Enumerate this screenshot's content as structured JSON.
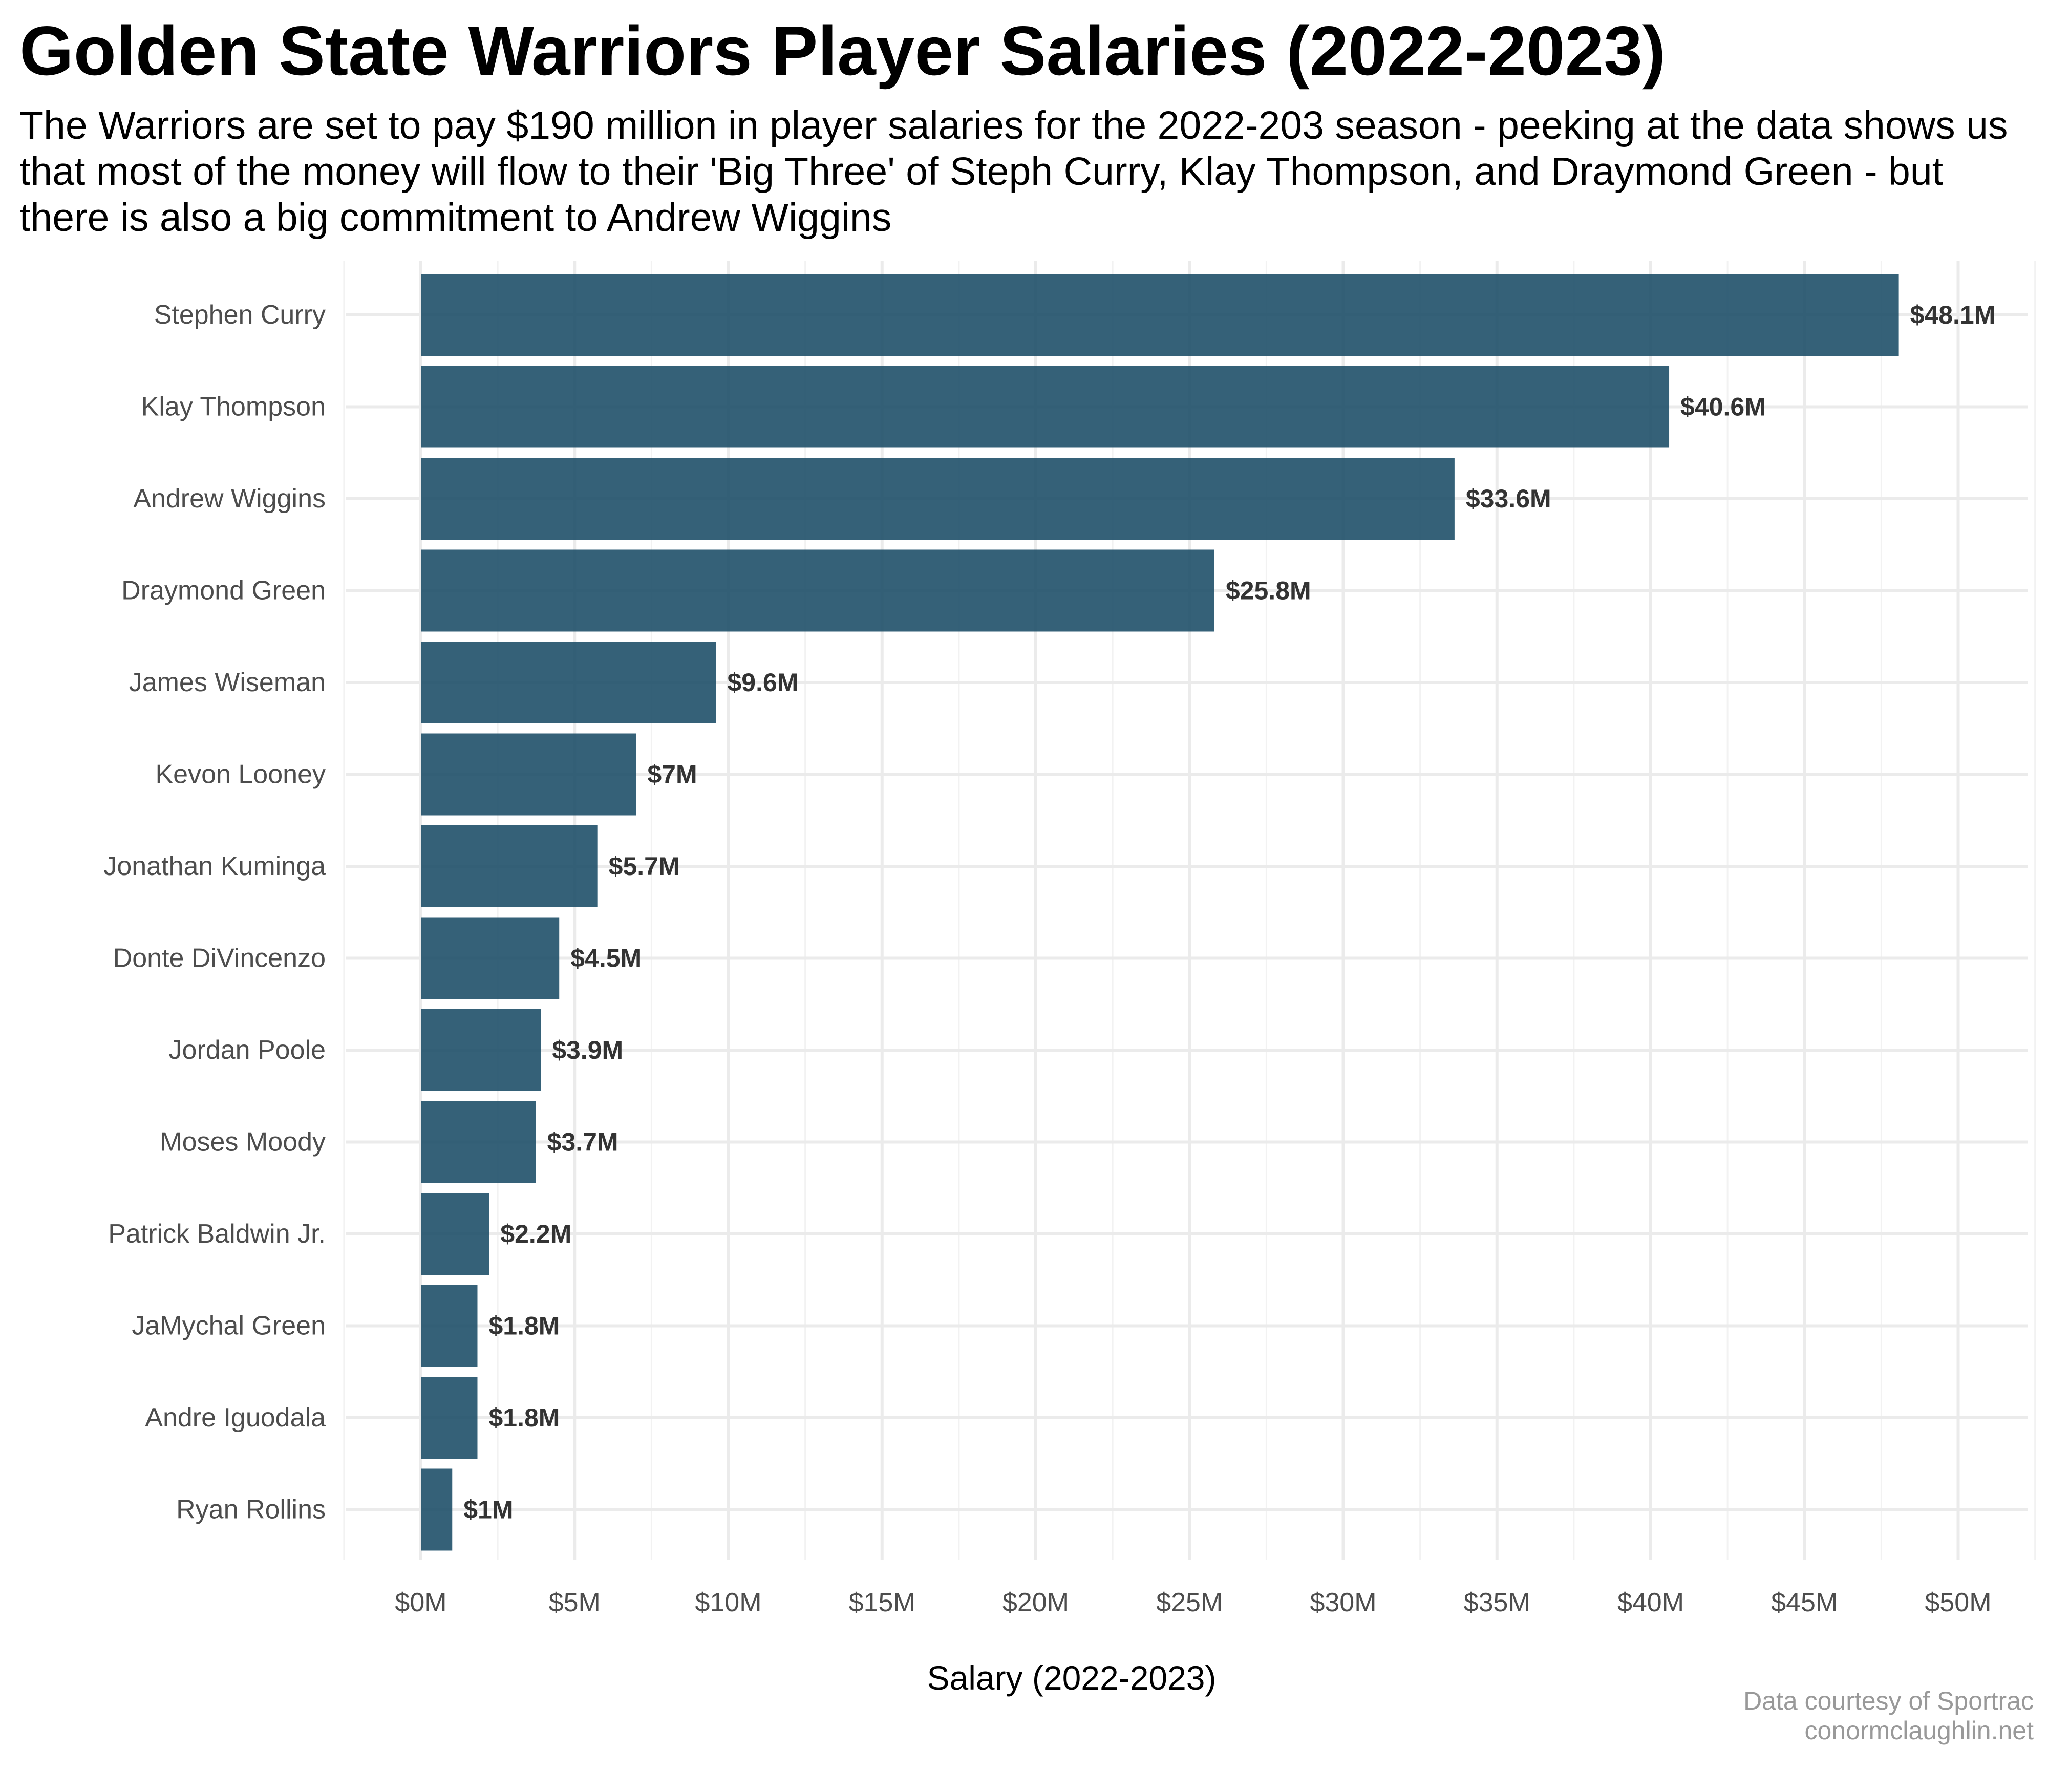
{
  "chart_data": {
    "type": "bar",
    "orientation": "horizontal",
    "title": "Golden State Warriors Player Salaries (2022-2023)",
    "subtitle": "The Warriors are set to pay $190 million in player salaries for the 2022-203 season - peeking at the data shows us that most of the money will flow to their 'Big Three' of Steph Curry, Klay Thompson, and Draymond Green - but there is also a big commitment to Andrew Wiggins",
    "xlabel": "Salary (2022-2023)",
    "ylabel": "",
    "xlim": [
      -2.5,
      52.5
    ],
    "x_ticks": [
      0,
      5,
      10,
      15,
      20,
      25,
      30,
      35,
      40,
      45,
      50
    ],
    "x_tick_labels": [
      "$0M",
      "$5M",
      "$10M",
      "$15M",
      "$20M",
      "$25M",
      "$30M",
      "$35M",
      "$40M",
      "$45M",
      "$50M"
    ],
    "categories": [
      "Stephen Curry",
      "Klay Thompson",
      "Andrew Wiggins",
      "Draymond Green",
      "James Wiseman",
      "Kevon Looney",
      "Jonathan Kuminga",
      "Donte DiVincenzo",
      "Jordan Poole",
      "Moses Moody",
      "Patrick Baldwin Jr.",
      "JaMychal Green",
      "Andre Iguodala",
      "Ryan Rollins"
    ],
    "values": [
      48.07,
      40.6,
      33.62,
      25.81,
      9.6,
      7.0,
      5.74,
      4.5,
      3.9,
      3.74,
      2.22,
      1.84,
      1.84,
      1.02
    ],
    "data_labels": [
      "$48.1M",
      "$40.6M",
      "$33.6M",
      "$25.8M",
      "$9.6M",
      "$7M",
      "$5.7M",
      "$4.5M",
      "$3.9M",
      "$3.7M",
      "$2.2M",
      "$1.8M",
      "$1.8M",
      "$1M"
    ],
    "unit": "million USD",
    "bar_color": "#1f5069",
    "grid": true,
    "legend": "none",
    "caption": [
      "Data courtesy of Sportrac",
      "conormclaughlin.net"
    ]
  }
}
